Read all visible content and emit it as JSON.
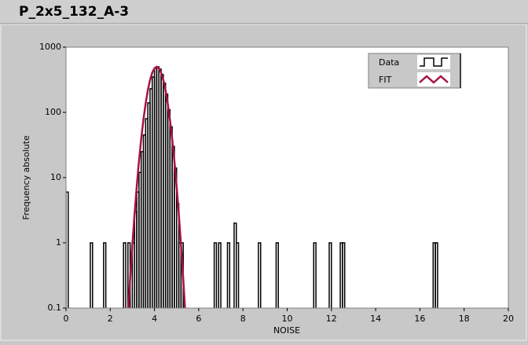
{
  "chart_data": {
    "type": "histogram",
    "title": "P_2x5_132_A-3",
    "xlabel": "NOISE",
    "ylabel": "Frequency absolute",
    "xlim": [
      0,
      20
    ],
    "xticks": [
      0,
      2,
      4,
      6,
      8,
      10,
      12,
      14,
      16,
      18,
      20
    ],
    "ylim": [
      0.1,
      1000
    ],
    "yticks": [
      0.1,
      1,
      10,
      100,
      1000
    ],
    "yscale": "log",
    "grid": false,
    "legend": "top-right",
    "series": [
      {
        "name": "Data",
        "color": "#000000",
        "bins": [
          0,
          0.1,
          1.1,
          1.2,
          1.7,
          1.8,
          2.6,
          2.7,
          2.8,
          2.9,
          3.0,
          3.1,
          3.2,
          3.3,
          3.4,
          3.5,
          3.6,
          3.7,
          3.8,
          3.9,
          4.0,
          4.1,
          4.2,
          4.3,
          4.4,
          4.5,
          4.6,
          4.7,
          4.8,
          4.9,
          5.0,
          5.1,
          5.2,
          5.3,
          6.7,
          6.8,
          6.9,
          7.0,
          7.3,
          7.4,
          7.6,
          7.7,
          7.8,
          8.7,
          8.8,
          9.5,
          9.6,
          11.2,
          11.3,
          11.9,
          12.0,
          12.4,
          12.5,
          12.6,
          16.6,
          16.7,
          16.8,
          20
        ],
        "values": [
          6,
          0,
          1,
          0,
          1,
          0,
          1,
          0,
          1,
          0,
          1,
          3,
          6,
          12,
          25,
          45,
          80,
          140,
          230,
          350,
          480,
          500,
          460,
          380,
          280,
          190,
          110,
          60,
          30,
          14,
          4,
          1,
          1,
          0,
          1,
          0,
          1,
          0,
          1,
          0,
          2,
          1,
          0,
          1,
          0,
          1,
          0,
          1,
          0,
          1,
          0,
          1,
          1,
          0,
          1,
          1,
          0
        ]
      },
      {
        "name": "FIT",
        "color": "#a8123e",
        "x": [
          2.8,
          2.9,
          3.0,
          3.1,
          3.2,
          3.3,
          3.4,
          3.5,
          3.6,
          3.7,
          3.8,
          3.9,
          4.0,
          4.1,
          4.2,
          4.3,
          4.4,
          4.5,
          4.6,
          4.7,
          4.8,
          4.9,
          5.0,
          5.1,
          5.2,
          5.3,
          5.4
        ],
        "values": [
          0.076,
          0.28,
          0.92,
          2.75,
          7.4,
          17.9,
          39,
          77,
          136,
          218,
          313,
          406,
          475,
          500,
          475,
          406,
          313,
          218,
          136,
          77,
          39,
          17.9,
          7.4,
          2.75,
          0.92,
          0.28,
          0.076
        ]
      }
    ]
  }
}
